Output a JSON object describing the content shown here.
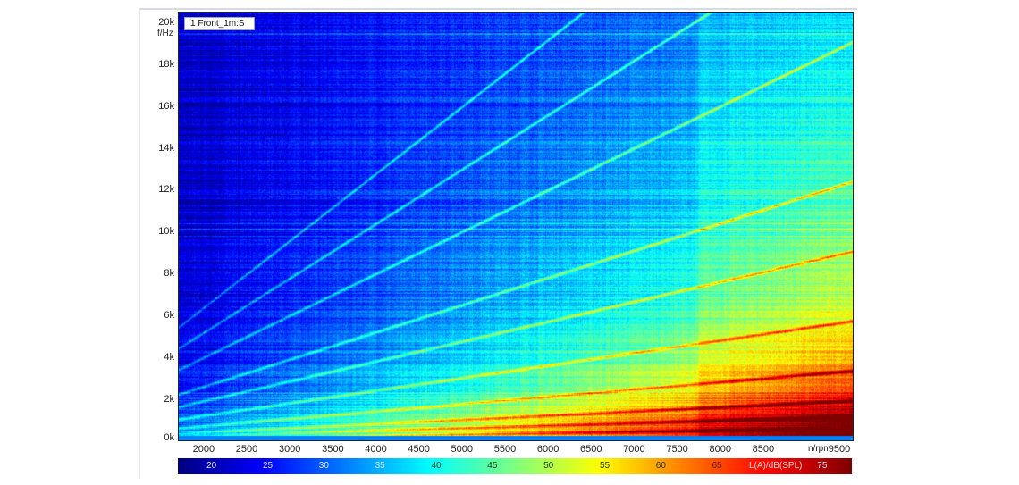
{
  "chart_data": {
    "type": "heatmap",
    "title": "",
    "legend": [
      "1 Front_1m:S"
    ],
    "xlabel": "n/rpm",
    "ylabel": "f/Hz",
    "xlim": [
      1700,
      9550
    ],
    "ylim": [
      0,
      20500
    ],
    "x_ticks": [
      2000,
      2500,
      3000,
      3500,
      4000,
      4500,
      5000,
      5500,
      6000,
      6500,
      7000,
      7500,
      8000,
      8500,
      9500
    ],
    "x_tick_labels": [
      "2000",
      "2500",
      "3000",
      "3500",
      "4000",
      "4500",
      "5000",
      "5500",
      "6000",
      "6500",
      "7000",
      "7500",
      "8000",
      "8500",
      "9500"
    ],
    "y_ticks": [
      0,
      2000,
      4000,
      6000,
      8000,
      10000,
      12000,
      14000,
      16000,
      18000,
      20000
    ],
    "y_tick_labels": [
      "0k",
      "2k",
      "4k",
      "6k",
      "8k",
      "10k",
      "12k",
      "14k",
      "16k",
      "18k",
      "20k"
    ],
    "colorbar": {
      "label": "L(A)/dB(SPL)",
      "range": [
        17,
        77
      ],
      "ticks": [
        20,
        25,
        30,
        35,
        40,
        45,
        50,
        55,
        60,
        65,
        75
      ],
      "colormap": "jet"
    },
    "description": "Campbell/waterfall spectrogram of sound pressure vs engine speed; engine-order lines rise linearly with rpm; level increases with rpm, highest (60-72 dB) below ~2 kHz above 6500 rpm; background ~20-25 dB at high frequency/low rpm.",
    "order_lines_hz_per_rpm": [
      0.06,
      0.12,
      0.2,
      0.35,
      0.6,
      0.95,
      1.3,
      2.0,
      2.6,
      3.2
    ],
    "constant_lines_hz": [
      10400,
      10150,
      9800,
      19500
    ],
    "level_estimates_db": {
      "low_rpm_high_freq": 21,
      "low_rpm_low_freq": 45,
      "high_rpm_mid_freq": 50,
      "high_rpm_low_freq": 65,
      "peak": 72
    }
  },
  "ui": {
    "legend_label": "1 Front_1m:S",
    "y_axis_label": "f/Hz",
    "x_axis_label": "n/rpm",
    "colorbar_label": "L(A)/dB(SPL)"
  }
}
